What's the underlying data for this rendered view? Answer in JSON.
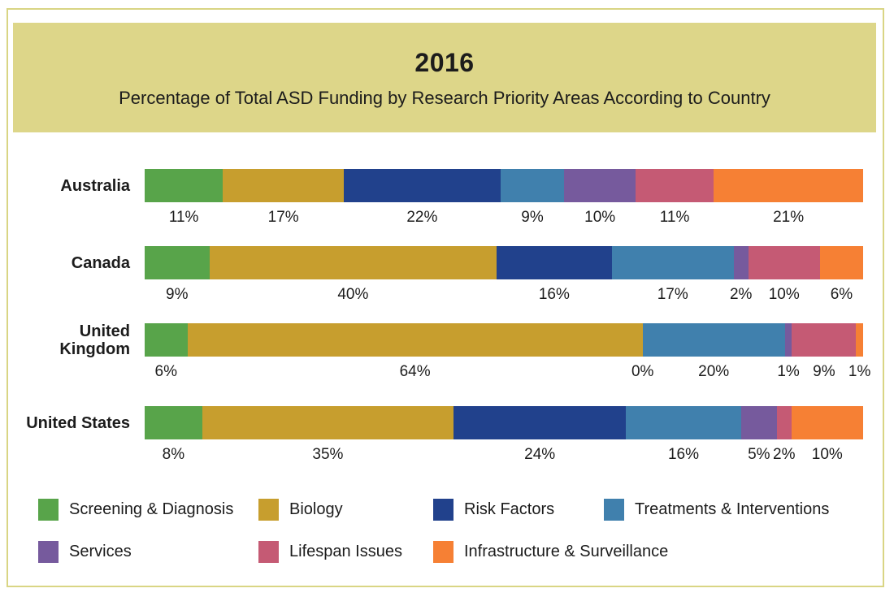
{
  "header": {
    "title": "2016",
    "subtitle": "Percentage of Total ASD Funding by Research Priority Areas According to Country"
  },
  "colors": {
    "banner_background": "#ddd689",
    "frame_border": "#d9d584",
    "text": "#1c1c1c"
  },
  "chart_data": {
    "type": "bar",
    "orientation": "horizontal",
    "stacked": true,
    "unit": "%",
    "title": "2016",
    "subtitle": "Percentage of Total ASD Funding by Research Priority Areas According to Country",
    "value_labels_position": "below segments",
    "legend_position": "bottom",
    "categories": [
      "Australia",
      "Canada",
      "United Kingdom",
      "United States"
    ],
    "series": [
      {
        "name": "Screening & Diagnosis",
        "color": "#58a44a",
        "values": [
          11,
          9,
          6,
          8
        ]
      },
      {
        "name": "Biology",
        "color": "#c79e2e",
        "values": [
          17,
          40,
          64,
          35
        ]
      },
      {
        "name": "Risk Factors",
        "color": "#21418c",
        "values": [
          22,
          16,
          0,
          24
        ]
      },
      {
        "name": "Treatments & Interventions",
        "color": "#4080ad",
        "values": [
          9,
          17,
          20,
          16
        ]
      },
      {
        "name": "Services",
        "color": "#765a9d",
        "values": [
          10,
          2,
          1,
          5
        ]
      },
      {
        "name": "Lifespan Issues",
        "color": "#c55a74",
        "values": [
          11,
          10,
          9,
          2
        ]
      },
      {
        "name": "Infrastructure & Surveillance",
        "color": "#f68034",
        "values": [
          21,
          6,
          1,
          10
        ]
      }
    ]
  },
  "legend": {
    "items": [
      "Screening & Diagnosis",
      "Biology",
      "Risk Factors",
      "Treatments & Interventions",
      "Services",
      "Lifespan Issues",
      "Infrastructure & Surveillance"
    ]
  }
}
